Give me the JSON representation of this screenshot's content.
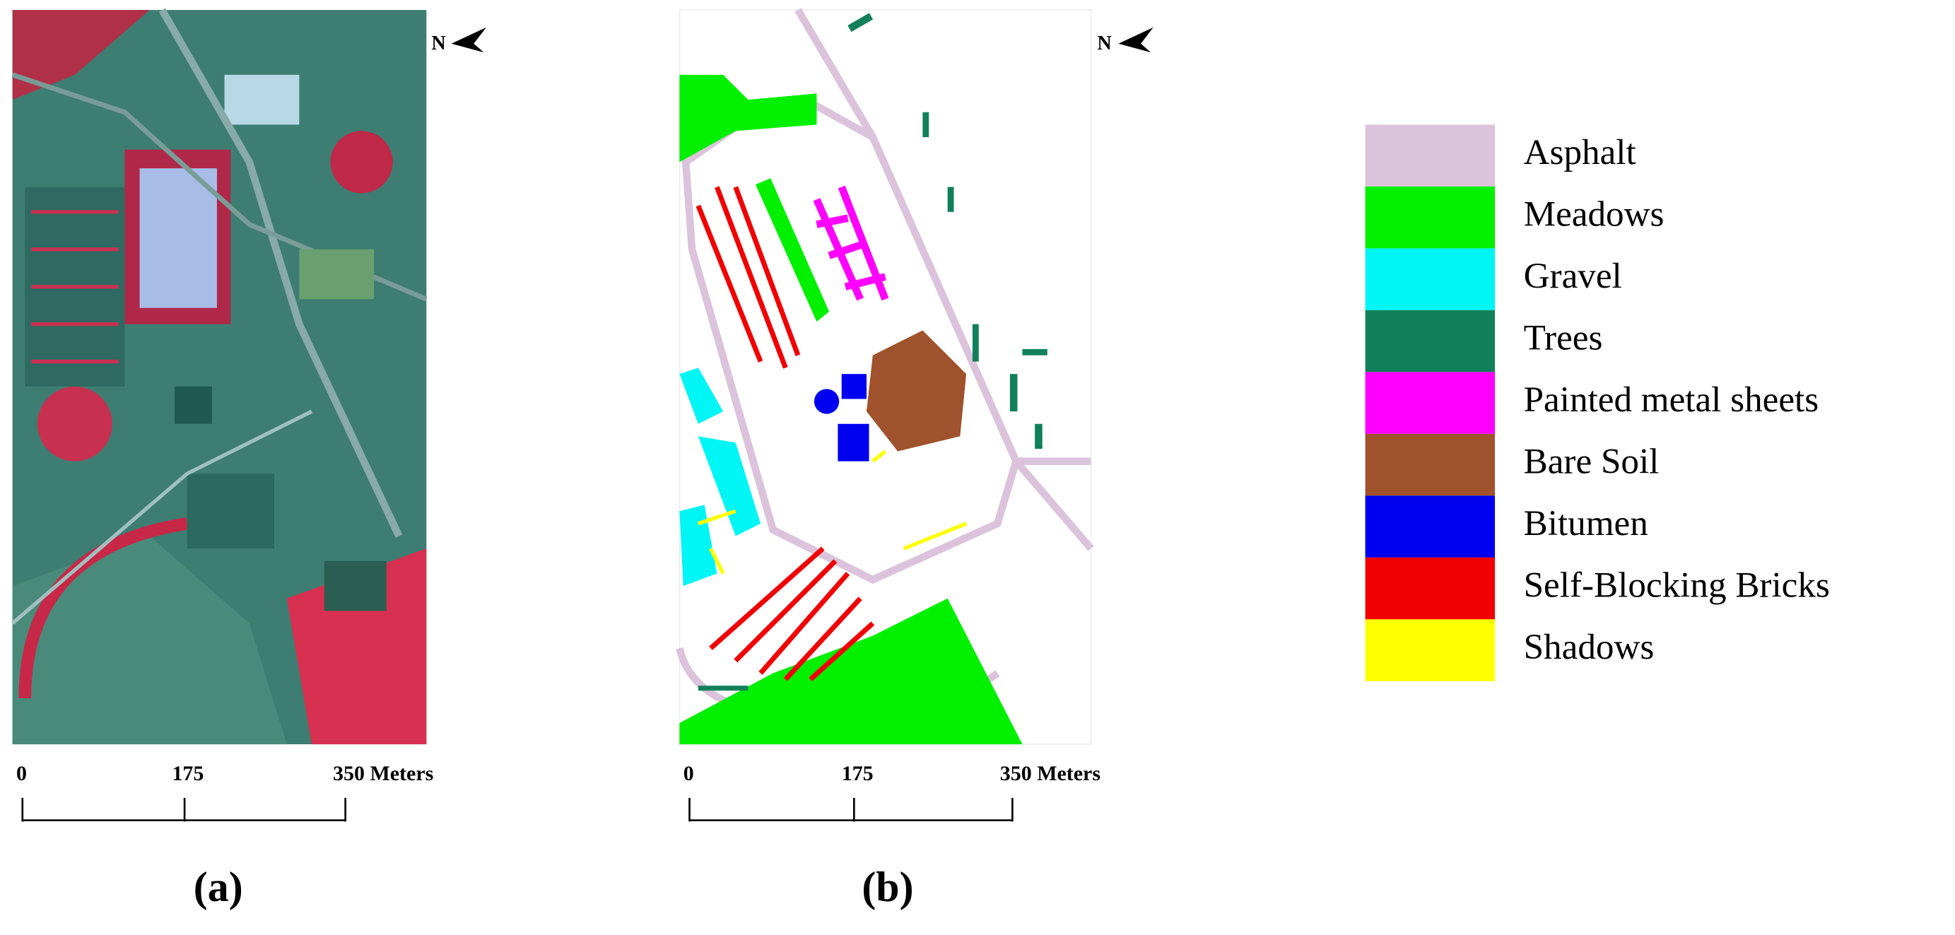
{
  "panels": [
    {
      "label": "(a)",
      "north": "N",
      "scale_bar": [
        "0",
        "175",
        "350 Meters"
      ]
    },
    {
      "label": "(b)",
      "north": "N",
      "scale_bar": [
        "0",
        "175",
        "350 Meters"
      ]
    }
  ],
  "legend": [
    {
      "name": "Asphalt",
      "color": "#dcc3dc"
    },
    {
      "name": "Meadows",
      "color": "#00f000"
    },
    {
      "name": "Gravel",
      "color": "#00f5f5"
    },
    {
      "name": "Trees",
      "color": "#11805a"
    },
    {
      "name": "Painted metal sheets",
      "color": "#ff00ff"
    },
    {
      "name": "Bare Soil",
      "color": "#a0522d"
    },
    {
      "name": "Bitumen",
      "color": "#0000f0"
    },
    {
      "name": "Self-Blocking Bricks",
      "color": "#f00000"
    },
    {
      "name": "Shadows",
      "color": "#ffff00"
    }
  ]
}
